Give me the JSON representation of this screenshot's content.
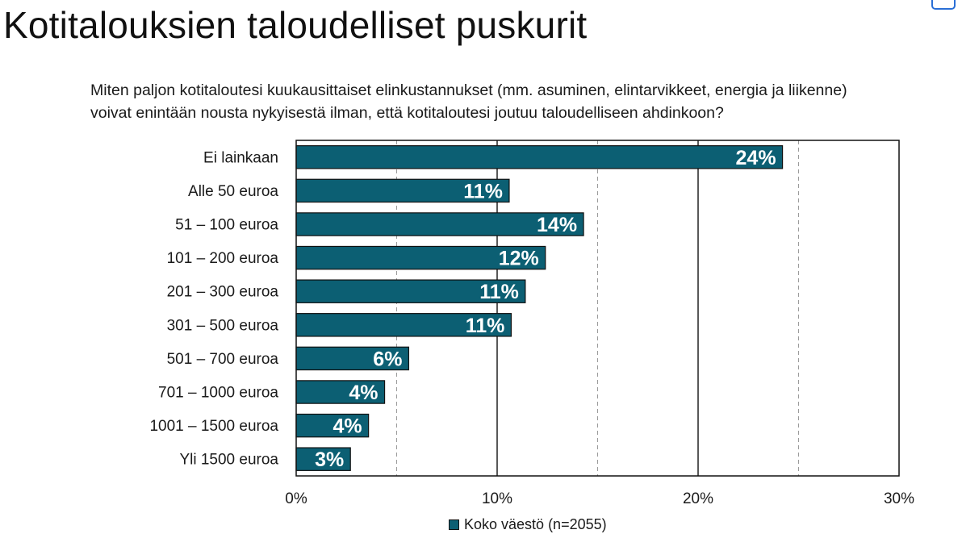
{
  "page": {
    "title": "Kotitalouksien taloudelliset puskurit",
    "question": "Miten paljon kotitaloutesi kuukausittaiset elinkustannukset (mm. asuminen, elintarvikkeet, energia ja liikenne) voivat enintään nousta nykyisestä ilman, että kotitaloutesi joutuu taloudelliseen ahdinkoon?"
  },
  "chart_data": {
    "type": "bar",
    "orientation": "horizontal",
    "categories": [
      "Ei lainkaan",
      "Alle 50 euroa",
      "51 – 100 euroa",
      "101 – 200 euroa",
      "201 – 300 euroa",
      "301 – 500 euroa",
      "501 – 700 euroa",
      "701 – 1000 euroa",
      "1001 – 1500 euroa",
      "Yli 1500 euroa"
    ],
    "series": [
      {
        "name": "Koko väestö (n=2055)",
        "color": "#0c5f73",
        "values": [
          24.2,
          10.6,
          14.3,
          12.4,
          11.4,
          10.7,
          5.6,
          4.4,
          3.6,
          2.7
        ],
        "labels": [
          "24%",
          "11%",
          "14%",
          "12%",
          "11%",
          "11%",
          "6%",
          "4%",
          "4%",
          "3%"
        ]
      }
    ],
    "xlim": [
      0,
      30
    ],
    "xticks": [
      0,
      10,
      20,
      30
    ],
    "xtick_labels": [
      "0%",
      "10%",
      "20%",
      "30%"
    ],
    "major_gridlines": [
      10,
      20
    ],
    "minor_gridlines": [
      5,
      15,
      25
    ],
    "legend": {
      "position": "bottom",
      "label": "Koko väestö (n=2055)"
    }
  }
}
